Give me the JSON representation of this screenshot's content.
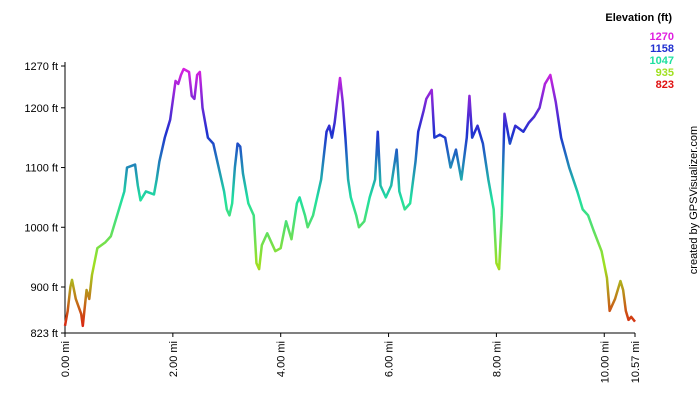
{
  "chart_data": {
    "type": "line",
    "legend_title": "Elevation (ft)",
    "credit": "created by GPSVisualizer.com",
    "color_scale": [
      {
        "value": 1270,
        "color": "#e020e0"
      },
      {
        "value": 1158,
        "color": "#2030d0"
      },
      {
        "value": 1047,
        "color": "#20e0a0"
      },
      {
        "value": 935,
        "color": "#a0e020"
      },
      {
        "value": 823,
        "color": "#e01010"
      }
    ],
    "x": [
      0.0,
      0.05,
      0.1,
      0.13,
      0.2,
      0.3,
      0.33,
      0.4,
      0.45,
      0.5,
      0.6,
      0.75,
      0.85,
      1.0,
      1.1,
      1.15,
      1.3,
      1.35,
      1.4,
      1.5,
      1.65,
      1.7,
      1.75,
      1.85,
      1.95,
      2.05,
      2.1,
      2.15,
      2.2,
      2.3,
      2.35,
      2.4,
      2.45,
      2.5,
      2.55,
      2.65,
      2.75,
      2.85,
      2.95,
      3.0,
      3.05,
      3.1,
      3.15,
      3.2,
      3.25,
      3.3,
      3.4,
      3.5,
      3.55,
      3.6,
      3.65,
      3.75,
      3.85,
      3.9,
      4.0,
      4.1,
      4.2,
      4.3,
      4.35,
      4.45,
      4.5,
      4.6,
      4.75,
      4.85,
      4.9,
      4.95,
      5.0,
      5.1,
      5.15,
      5.2,
      5.25,
      5.3,
      5.4,
      5.45,
      5.55,
      5.65,
      5.75,
      5.8,
      5.85,
      5.95,
      6.05,
      6.15,
      6.2,
      6.3,
      6.4,
      6.5,
      6.55,
      6.65,
      6.7,
      6.8,
      6.85,
      6.95,
      7.05,
      7.15,
      7.25,
      7.35,
      7.45,
      7.5,
      7.55,
      7.65,
      7.75,
      7.85,
      7.95,
      8.0,
      8.05,
      8.1,
      8.15,
      8.25,
      8.35,
      8.5,
      8.6,
      8.7,
      8.8,
      8.9,
      9.0,
      9.1,
      9.2,
      9.35,
      9.5,
      9.6,
      9.7,
      9.8,
      9.95,
      10.05,
      10.1,
      10.2,
      10.3,
      10.35,
      10.4,
      10.45,
      10.5,
      10.57
    ],
    "series": [
      {
        "name": "Elevation",
        "values": [
          835,
          860,
          900,
          912,
          880,
          855,
          835,
          895,
          880,
          920,
          965,
          975,
          985,
          1030,
          1060,
          1100,
          1105,
          1070,
          1045,
          1060,
          1055,
          1080,
          1110,
          1150,
          1180,
          1245,
          1240,
          1255,
          1265,
          1260,
          1220,
          1215,
          1255,
          1260,
          1200,
          1150,
          1140,
          1100,
          1060,
          1030,
          1020,
          1040,
          1100,
          1140,
          1135,
          1090,
          1040,
          1020,
          940,
          930,
          970,
          990,
          970,
          960,
          965,
          1010,
          980,
          1040,
          1050,
          1020,
          1000,
          1020,
          1080,
          1160,
          1170,
          1150,
          1175,
          1250,
          1210,
          1150,
          1080,
          1050,
          1020,
          1000,
          1010,
          1050,
          1080,
          1160,
          1070,
          1050,
          1070,
          1130,
          1060,
          1030,
          1040,
          1110,
          1160,
          1195,
          1215,
          1230,
          1150,
          1155,
          1150,
          1100,
          1130,
          1080,
          1150,
          1220,
          1150,
          1170,
          1140,
          1080,
          1030,
          940,
          930,
          1020,
          1190,
          1140,
          1170,
          1160,
          1175,
          1185,
          1200,
          1240,
          1255,
          1210,
          1150,
          1100,
          1060,
          1030,
          1020,
          995,
          960,
          915,
          860,
          880,
          910,
          895,
          860,
          845,
          850,
          842
        ]
      }
    ],
    "xlim": [
      0,
      10.57
    ],
    "ylim": [
      823,
      1270
    ],
    "xticks": [
      {
        "value": 0,
        "label": "0.00 mi"
      },
      {
        "value": 2,
        "label": "2.00 mi"
      },
      {
        "value": 4,
        "label": "4.00 mi"
      },
      {
        "value": 6,
        "label": "6.00 mi"
      },
      {
        "value": 8,
        "label": "8.00 mi"
      },
      {
        "value": 10,
        "label": "10.00 mi"
      },
      {
        "value": 10.57,
        "label": "10.57 mi"
      }
    ],
    "yticks": [
      {
        "value": 823,
        "label": "823 ft"
      },
      {
        "value": 900,
        "label": "900 ft"
      },
      {
        "value": 1000,
        "label": "1000 ft"
      },
      {
        "value": 1100,
        "label": "1100 ft"
      },
      {
        "value": 1200,
        "label": "1200 ft"
      },
      {
        "value": 1270,
        "label": "1270 ft"
      }
    ]
  }
}
